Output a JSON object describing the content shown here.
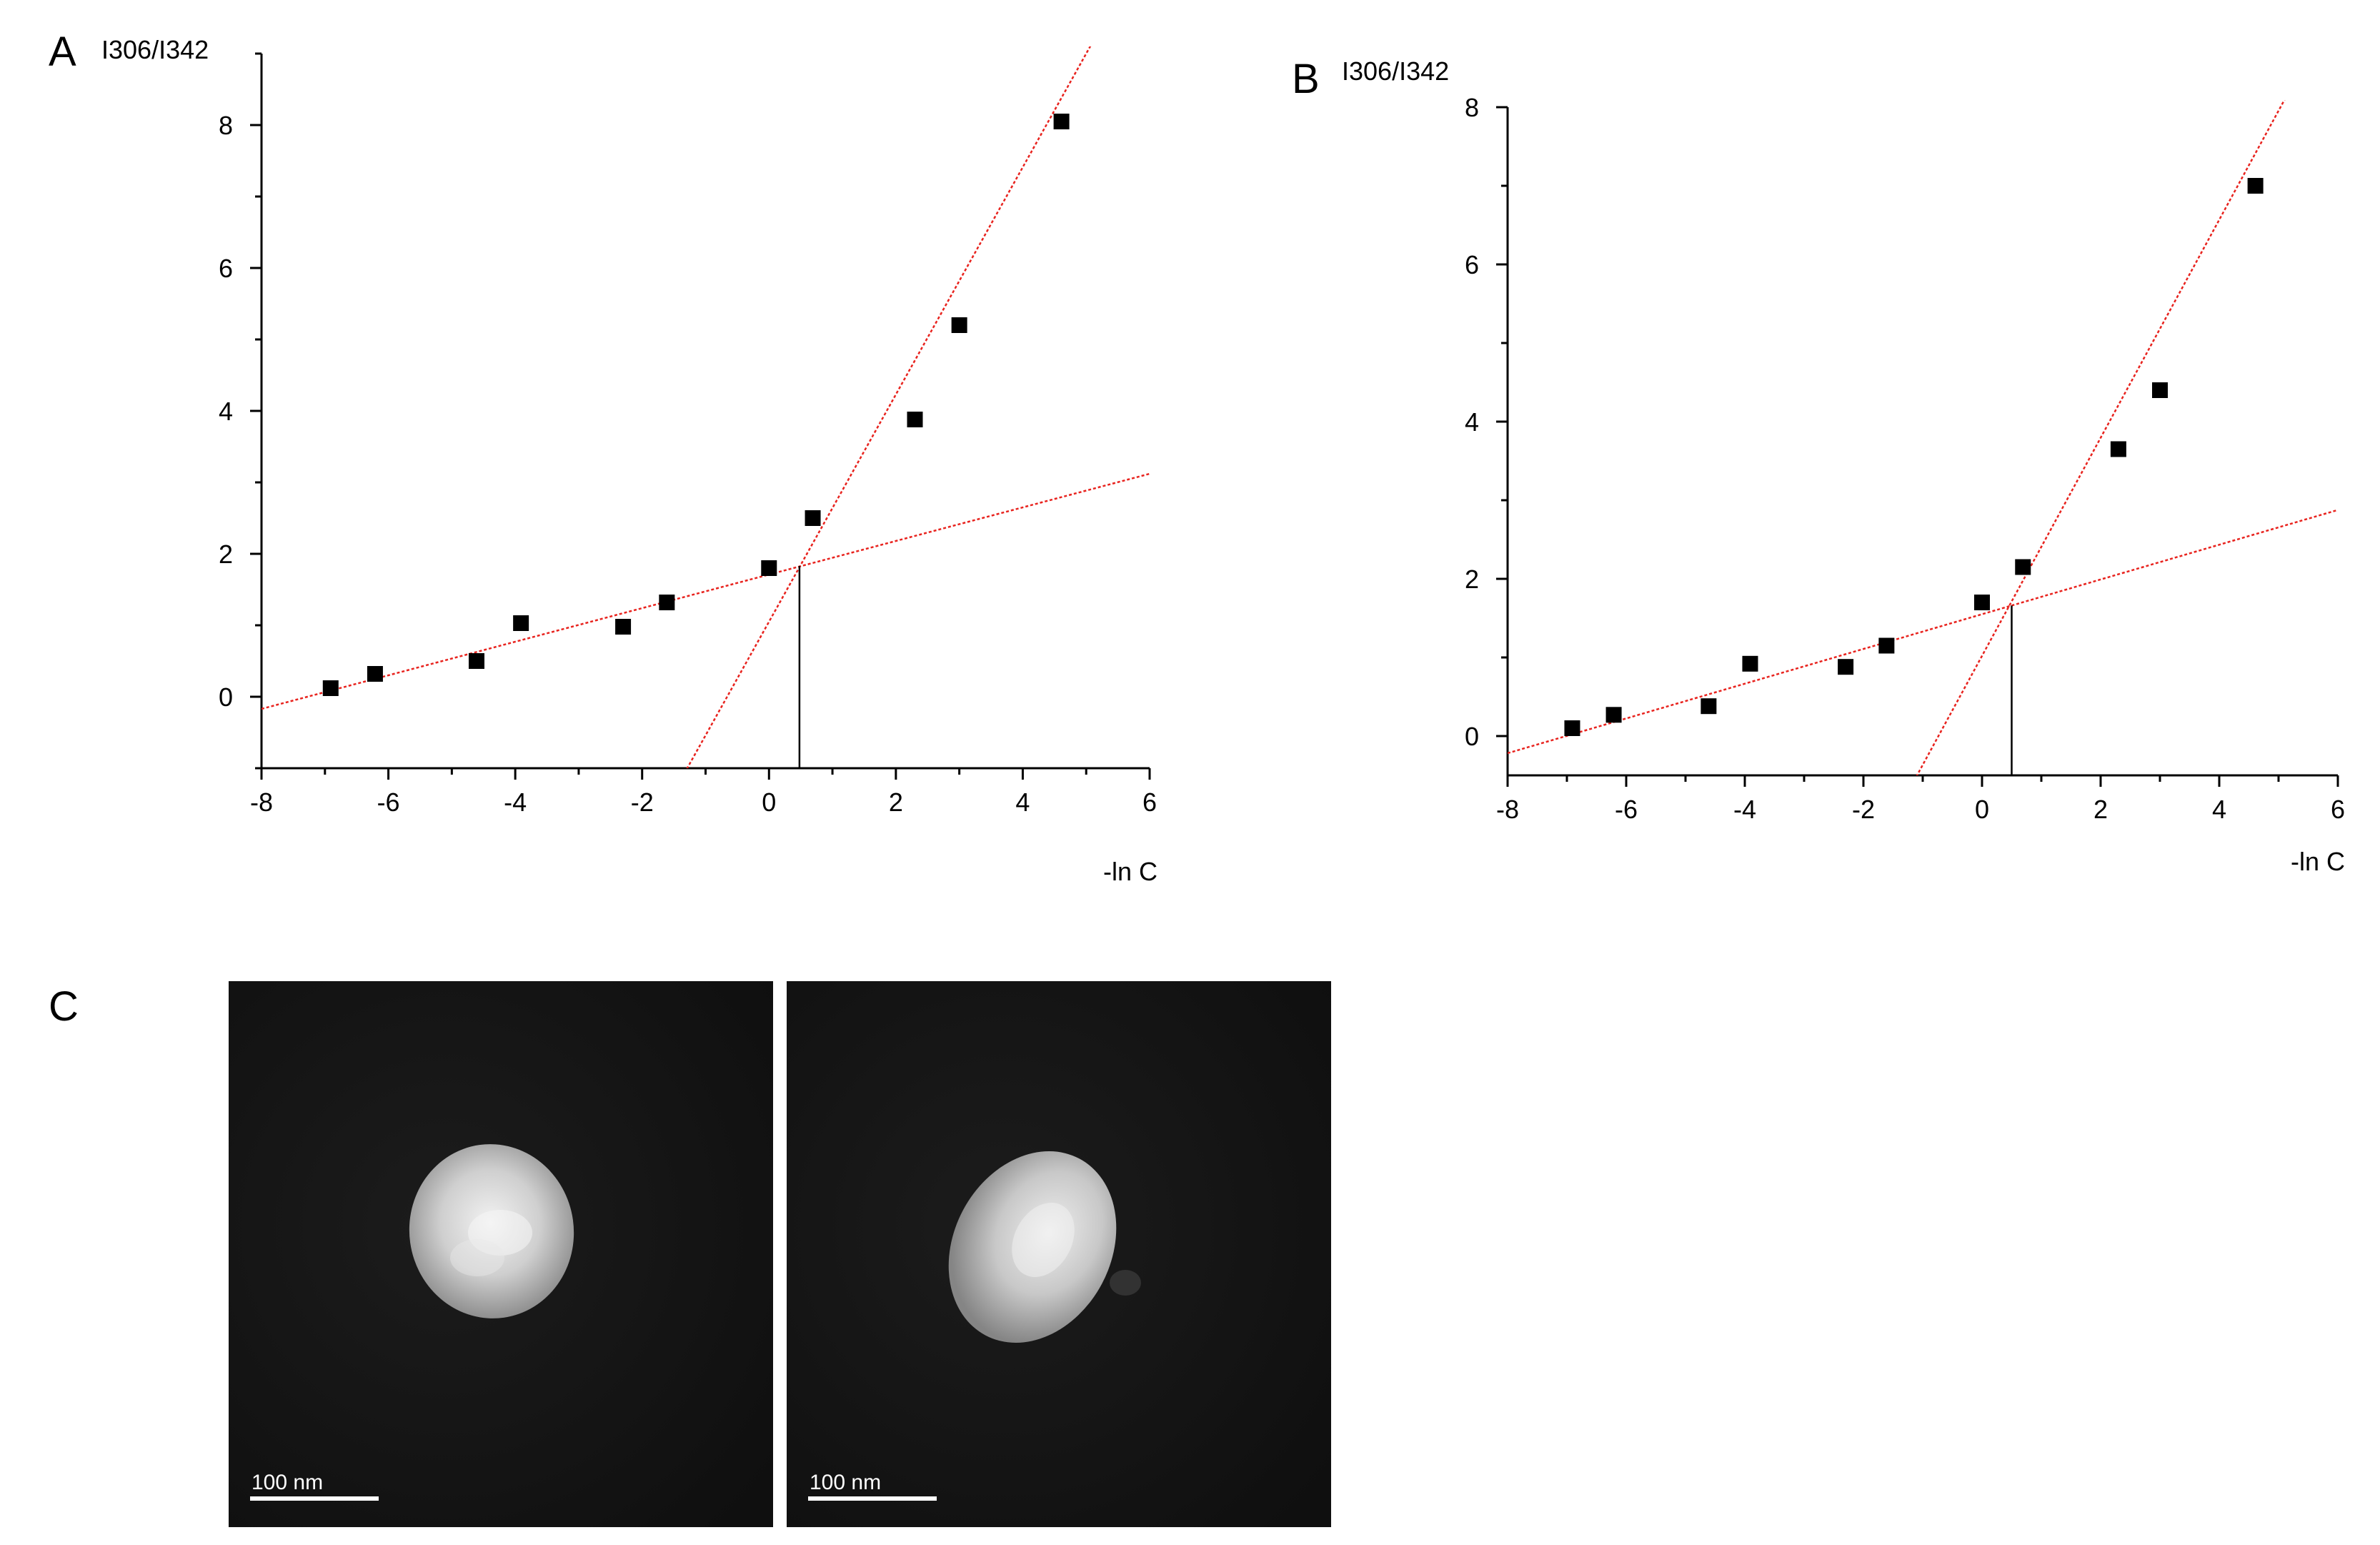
{
  "chart_data": [
    {
      "panel": "A",
      "type": "scatter",
      "ylabel": "I306/I342",
      "xlabel": "-ln C",
      "xlim": [
        -8,
        6
      ],
      "ylim": [
        -1,
        9
      ],
      "xticks": [
        -8,
        -6,
        -4,
        -2,
        0,
        2,
        4,
        6
      ],
      "yticks": [
        0,
        2,
        4,
        6,
        8
      ],
      "grid": false,
      "points": {
        "x": [
          -6.91,
          -6.21,
          -4.61,
          -3.91,
          -2.3,
          -1.61,
          0,
          0.69,
          2.3,
          3.0,
          4.61
        ],
        "y": [
          0.12,
          0.32,
          0.5,
          1.03,
          0.98,
          1.32,
          1.8,
          2.5,
          3.88,
          5.2,
          8.05
        ]
      },
      "fit_lines": [
        {
          "slope": 0.235,
          "intercept": 1.71,
          "x_range": [
            -8,
            6
          ]
        },
        {
          "slope": 1.59,
          "intercept": 1.05,
          "x_range": [
            -1.45,
            5.4
          ]
        }
      ],
      "intersection": {
        "x": 0.48,
        "y": 1.83
      }
    },
    {
      "panel": "B",
      "type": "scatter",
      "ylabel": "I306/I342",
      "xlabel": "-ln C",
      "xlim": [
        -8,
        6
      ],
      "ylim": [
        -0.5,
        8
      ],
      "xticks": [
        -8,
        -6,
        -4,
        -2,
        0,
        2,
        4,
        6
      ],
      "yticks": [
        0,
        2,
        4,
        6,
        8
      ],
      "grid": false,
      "points": {
        "x": [
          -6.91,
          -6.21,
          -4.61,
          -3.91,
          -2.3,
          -1.61,
          0,
          0.69,
          2.3,
          3.0,
          4.61
        ],
        "y": [
          0.1,
          0.27,
          0.38,
          0.92,
          0.88,
          1.15,
          1.7,
          2.15,
          3.65,
          4.4,
          7.0
        ]
      },
      "fit_lines": [
        {
          "slope": 0.221,
          "intercept": 1.55,
          "x_range": [
            -8,
            6
          ]
        },
        {
          "slope": 1.387,
          "intercept": 1.02,
          "x_range": [
            -1.23,
            5.55
          ]
        }
      ],
      "intersection": {
        "x": 0.5,
        "y": 1.66
      }
    }
  ],
  "panel_c": {
    "letter": "C",
    "images": [
      {
        "scale_bar_label": "100 nm"
      },
      {
        "scale_bar_label": "100 nm"
      }
    ]
  },
  "colors": {
    "points": "#000000",
    "fit_line": "#e8231e",
    "axis": "#000000",
    "micrograph_bg": "#151515",
    "particle": "#d9d9d9"
  }
}
